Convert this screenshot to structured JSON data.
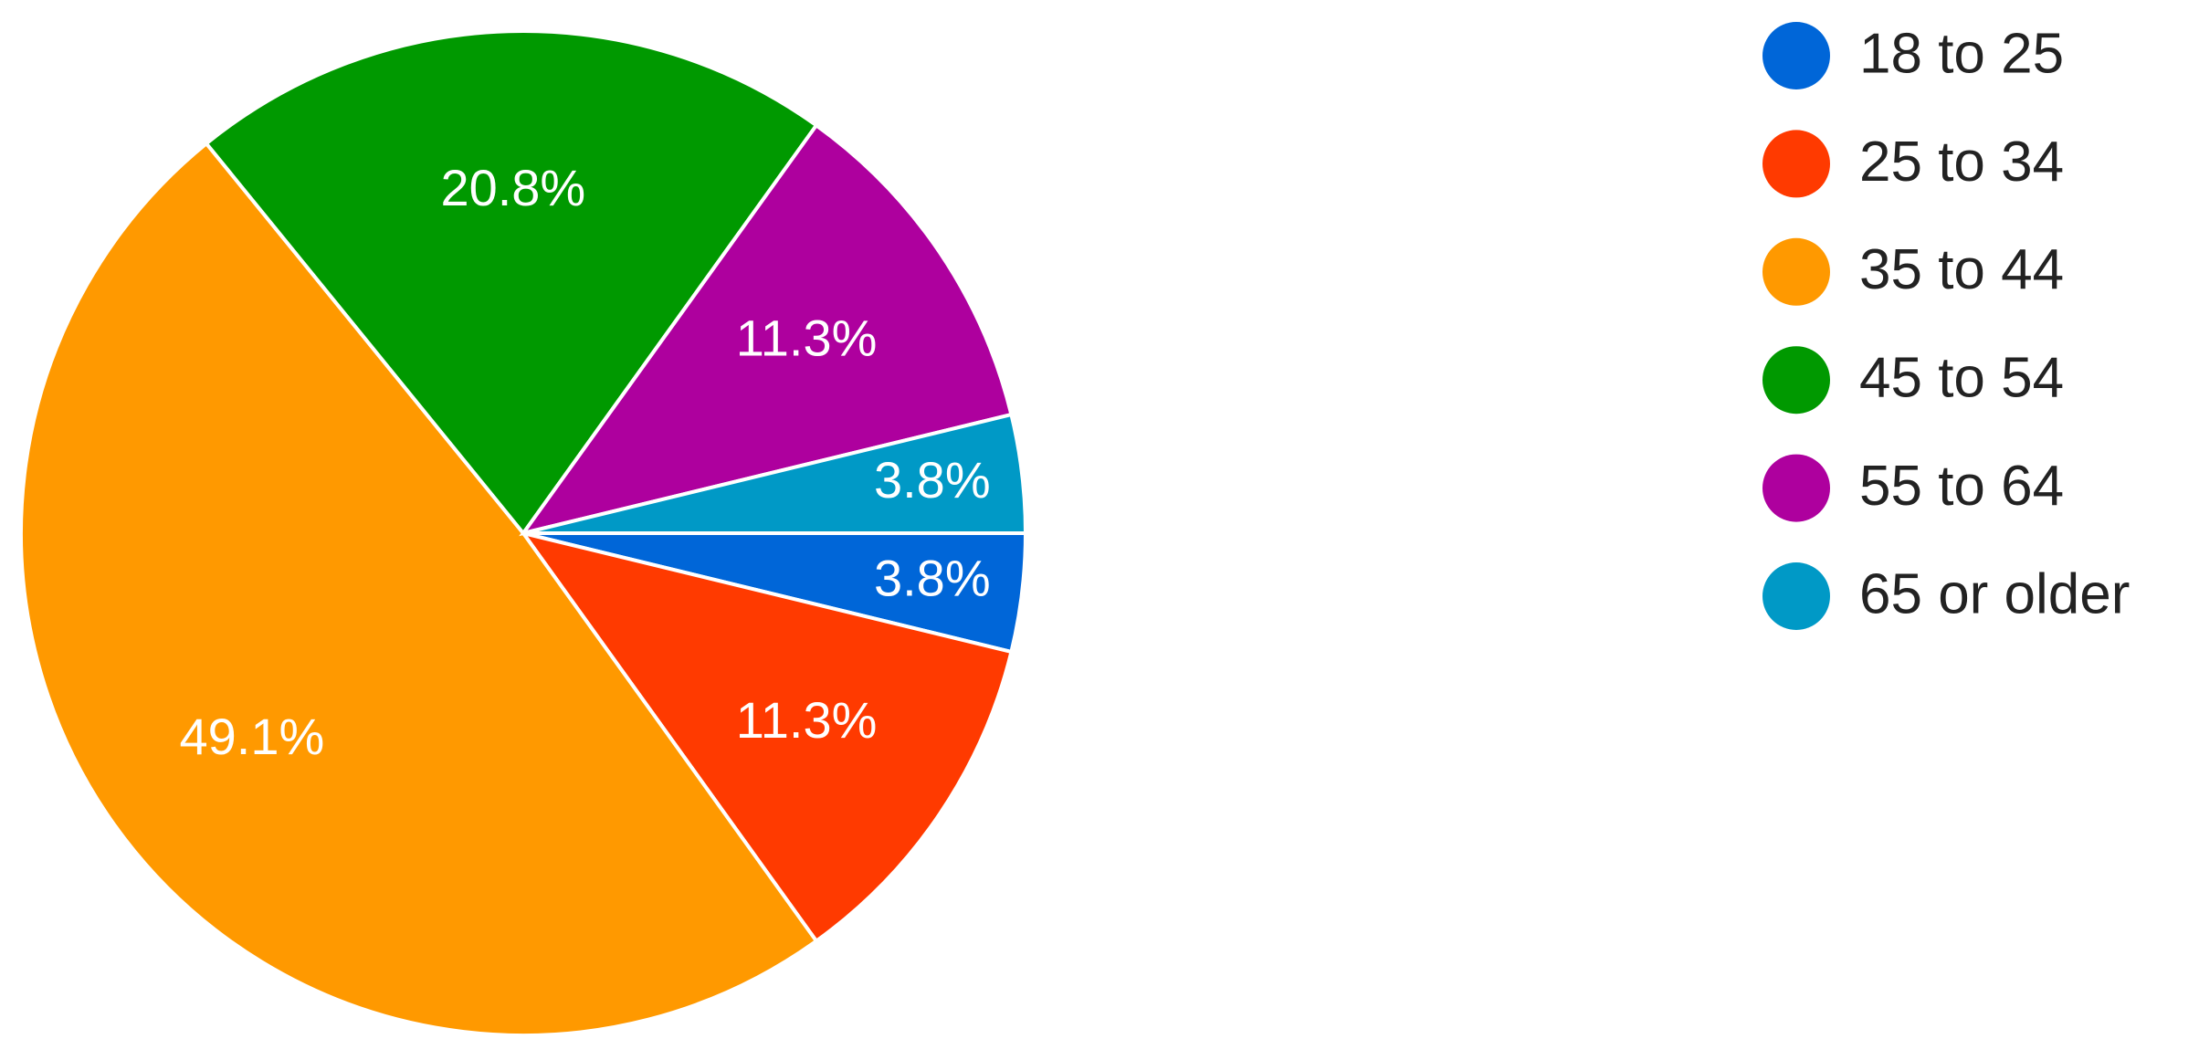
{
  "chart_data": {
    "type": "pie",
    "categories": [
      "18 to 25",
      "25 to 34",
      "35 to 44",
      "45 to 54",
      "55 to 64",
      "65 or older"
    ],
    "values": [
      3.8,
      11.3,
      49.1,
      20.8,
      11.3,
      3.8
    ],
    "value_labels": [
      "3.8%",
      "11.3%",
      "49.1%",
      "20.8%",
      "11.3%",
      "3.8%"
    ],
    "colors": [
      "#0066d8",
      "#ff3a00",
      "#ff9900",
      "#009900",
      "#ae009e",
      "#0099c6"
    ],
    "legend": "right"
  }
}
